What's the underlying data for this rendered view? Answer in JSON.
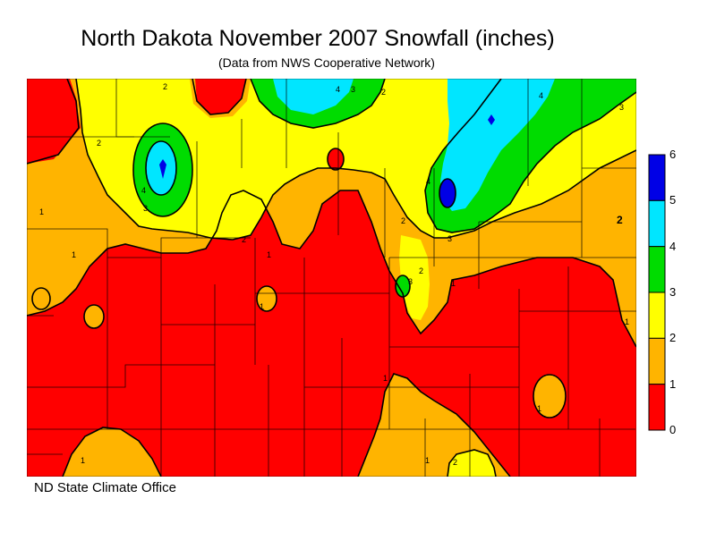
{
  "title": "North Dakota November 2007 Snowfall (inches)",
  "subtitle": "(Data from NWS Cooperative Network)",
  "credit": "ND State Climate Office",
  "legend": {
    "ticks": [
      "6",
      "5",
      "4",
      "3",
      "2",
      "1",
      "0"
    ],
    "bins": [
      {
        "range": "5-6",
        "color": "#0000e6"
      },
      {
        "range": "4-5",
        "color": "#00e6ff"
      },
      {
        "range": "3-4",
        "color": "#00dc00"
      },
      {
        "range": "2-3",
        "color": "#ffff00"
      },
      {
        "range": "1-2",
        "color": "#ffb400"
      },
      {
        "range": "0-1",
        "color": "#ff0000"
      }
    ]
  },
  "contour_labels": [
    "3",
    "2",
    "1"
  ]
}
